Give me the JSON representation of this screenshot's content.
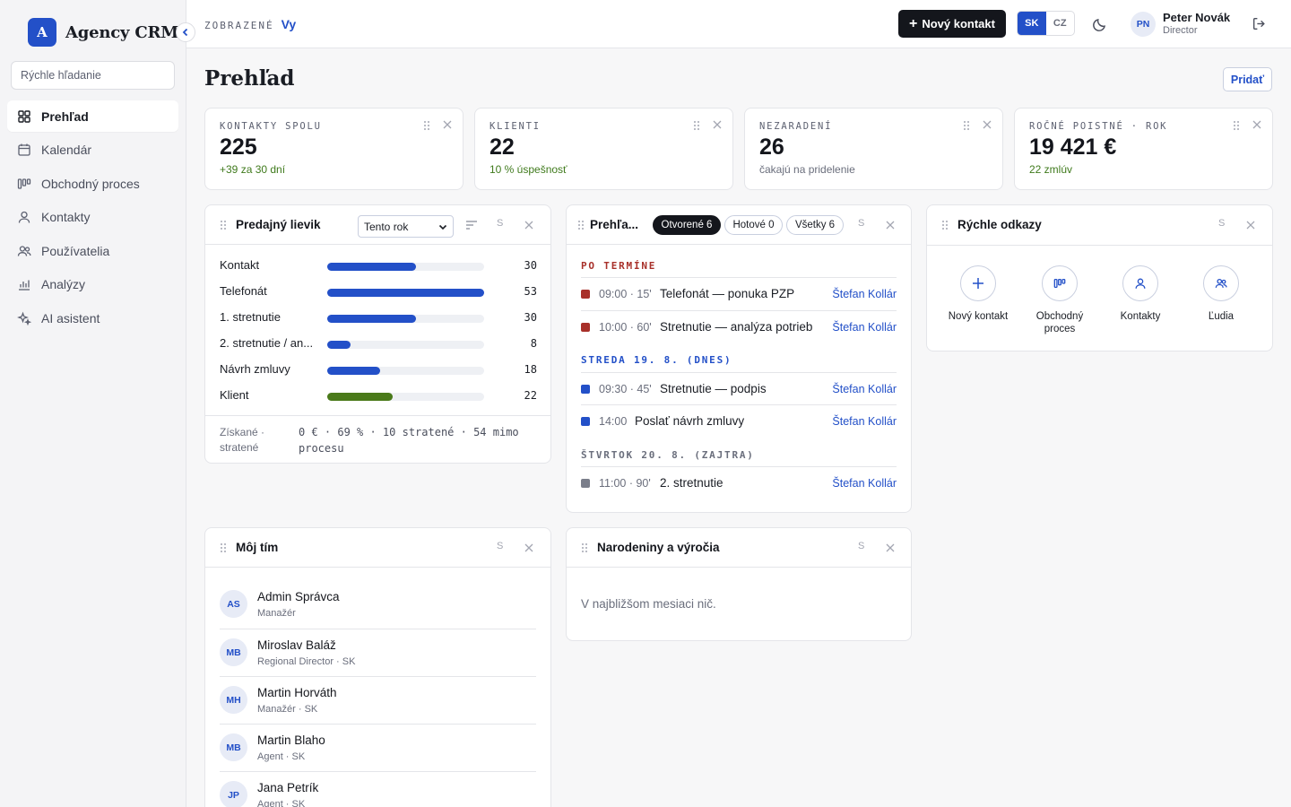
{
  "brand": {
    "logo_letter": "A",
    "name": "Agency CRM"
  },
  "search": {
    "placeholder": "Rýchle hľadanie"
  },
  "nav": [
    {
      "label": "Prehľad",
      "icon": "grid-icon",
      "active": true
    },
    {
      "label": "Kalendár",
      "icon": "calendar-icon"
    },
    {
      "label": "Obchodný proces",
      "icon": "pipeline-icon"
    },
    {
      "label": "Kontakty",
      "icon": "person-icon"
    },
    {
      "label": "Používatelia",
      "icon": "users-icon"
    },
    {
      "label": "Analýzy",
      "icon": "bar-chart-icon"
    },
    {
      "label": "AI asistent",
      "icon": "sparkle-icon"
    }
  ],
  "topbar": {
    "viewing_label": "ZOBRAZENÉ",
    "viewing_value": "Vy",
    "new_contact": "Nový kontakt",
    "lang_sk": "SK",
    "lang_cz": "CZ",
    "user_initials": "PN",
    "user_name": "Peter Novák",
    "user_role": "Director"
  },
  "page": {
    "title": "Prehľad",
    "add_label": "Pridať"
  },
  "stats": [
    {
      "label": "KONTAKTY SPOLU",
      "value": "225",
      "sub": "+39 za 30 dní",
      "sub_color": "green"
    },
    {
      "label": "KLIENTI",
      "value": "22",
      "sub": "10 % úspešnosť",
      "sub_color": "green"
    },
    {
      "label": "NEZARADENÍ",
      "value": "26",
      "sub": "čakajú na pridelenie",
      "sub_color": "gray"
    },
    {
      "label": "ROČNÉ POISTNÉ · ROK",
      "value": "19 421 €",
      "sub": "22 zmlúv",
      "sub_color": "green"
    }
  ],
  "funnel": {
    "title": "Predajný lievik",
    "period": "Tento rok",
    "size_label": "S",
    "max": 53,
    "rows": [
      {
        "label": "Kontakt",
        "value": 30,
        "color": "#2350c8"
      },
      {
        "label": "Telefonát",
        "value": 53,
        "color": "#2350c8"
      },
      {
        "label": "1. stretnutie",
        "value": 30,
        "color": "#2350c8"
      },
      {
        "label": "2. stretnutie / an...",
        "value": 8,
        "color": "#2350c8"
      },
      {
        "label": "Návrh zmluvy",
        "value": 18,
        "color": "#2350c8"
      },
      {
        "label": "Klient",
        "value": 22,
        "color": "#4a7a1a"
      }
    ],
    "footer_label": "Získané · stratené",
    "footer_value": "0 € · 69 % · 10 stratené · 54 mimo procesu"
  },
  "activities": {
    "title": "Prehľa...",
    "size_label": "S",
    "tabs": [
      {
        "label": "Otvorené 6",
        "active": true
      },
      {
        "label": "Hotové 0"
      },
      {
        "label": "Všetky 6"
      }
    ],
    "sections": [
      {
        "heading": "PO TERMÍNE",
        "color": "#a8302a",
        "items": [
          {
            "time": "09:00 · 15'",
            "title": "Telefonát — ponuka PZP",
            "who": "Štefan Kollár",
            "dot": "#a8302a"
          },
          {
            "time": "10:00 · 60'",
            "title": "Stretnutie — analýza potrieb",
            "who": "Štefan Kollár",
            "dot": "#a8302a"
          }
        ]
      },
      {
        "heading": "STREDA 19. 8. (DNES)",
        "color": "#2350c8",
        "items": [
          {
            "time": "09:30 · 45'",
            "title": "Stretnutie — podpis",
            "who": "Štefan Kollár",
            "dot": "#2350c8"
          },
          {
            "time": "14:00",
            "title": "Poslať návrh zmluvy",
            "who": "Štefan Kollár",
            "dot": "#2350c8"
          }
        ]
      },
      {
        "heading": "ŠTVRTOK 20. 8. (ZAJTRA)",
        "color": "#6a6e7c",
        "items": [
          {
            "time": "11:00 · 90'",
            "title": "2. stretnutie",
            "who": "Štefan Kollár",
            "dot": "#7a7e8a"
          }
        ]
      }
    ]
  },
  "quick_links": {
    "title": "Rýchle odkazy",
    "size_label": "S",
    "items": [
      {
        "label": "Nový kontakt",
        "icon": "plus-icon"
      },
      {
        "label": "Obchodný proces",
        "icon": "pipeline-icon"
      },
      {
        "label": "Kontakty",
        "icon": "person-icon"
      },
      {
        "label": "Ľudia",
        "icon": "users-icon"
      }
    ]
  },
  "team": {
    "title": "Môj tím",
    "size_label": "S",
    "members": [
      {
        "initials": "AS",
        "name": "Admin Správca",
        "role": "Manažér"
      },
      {
        "initials": "MB",
        "name": "Miroslav Baláž",
        "role": "Regional Director · SK"
      },
      {
        "initials": "MH",
        "name": "Martin Horváth",
        "role": "Manažér · SK"
      },
      {
        "initials": "MB",
        "name": "Martin Blaho",
        "role": "Agent · SK"
      },
      {
        "initials": "JP",
        "name": "Jana Petrík",
        "role": "Agent · SK"
      }
    ]
  },
  "birthdays": {
    "title": "Narodeniny a výročia",
    "size_label": "S",
    "empty": "V najbližšom mesiaci nič."
  }
}
